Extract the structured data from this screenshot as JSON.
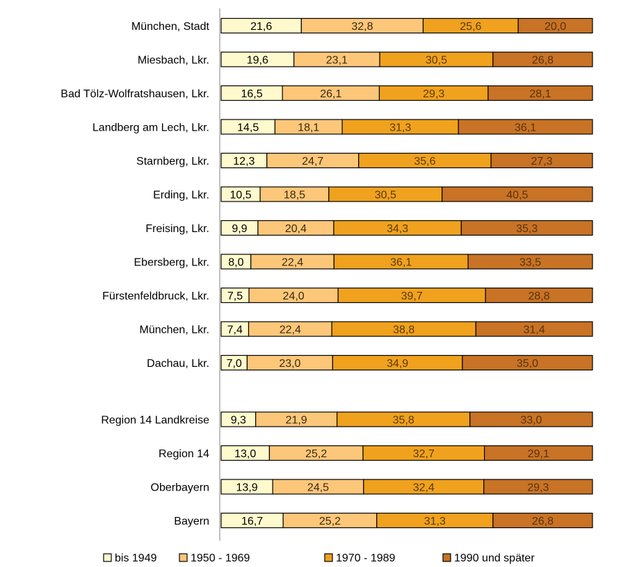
{
  "chart_data": {
    "type": "bar",
    "orientation": "horizontal",
    "stacked": true,
    "percent_stacked": true,
    "categories": [
      "München, Stadt",
      "Miesbach, Lkr.",
      "Bad Tölz-Wolfratshausen, Lkr.",
      "Landberg am Lech, Lkr.",
      "Starnberg, Lkr.",
      "Erding, Lkr.",
      "Freising, Lkr.",
      "Ebersberg, Lkr.",
      "Fürstenfeldbruck, Lkr.",
      "München, Lkr.",
      "Dachau, Lkr.",
      "Region 14 Landkreise",
      "Region 14",
      "Oberbayern",
      "Bayern"
    ],
    "series": [
      {
        "name": "bis 1949",
        "color": "#FFFACD",
        "label_color": "#000000",
        "values": [
          21.6,
          19.6,
          16.5,
          14.5,
          12.3,
          10.5,
          9.9,
          8.0,
          7.5,
          7.4,
          7.0,
          9.3,
          13.0,
          13.9,
          16.7
        ],
        "labels": [
          "21,6",
          "19,6",
          "16,5",
          "14,5",
          "12,3",
          "10,5",
          "9,9",
          "8,0",
          "7,5",
          "7,4",
          "7,0",
          "9,3",
          "13,0",
          "13,9",
          "16,7"
        ]
      },
      {
        "name": "1950 - 1969",
        "color": "#FDC77A",
        "label_color": "#3a2a10",
        "values": [
          32.8,
          23.1,
          26.1,
          18.1,
          24.7,
          18.5,
          20.4,
          22.4,
          24.0,
          22.4,
          23.0,
          21.9,
          25.2,
          24.5,
          25.2
        ],
        "labels": [
          "32,8",
          "23,1",
          "26,1",
          "18,1",
          "24,7",
          "18,5",
          "20,4",
          "22,4",
          "24,0",
          "22,4",
          "23,0",
          "21,9",
          "25,2",
          "24,5",
          "25,2"
        ]
      },
      {
        "name": "1970 - 1989",
        "color": "#F0A21E",
        "label_color": "#5a3a08",
        "values": [
          25.6,
          30.5,
          29.3,
          31.3,
          35.6,
          30.5,
          34.3,
          36.1,
          39.7,
          38.8,
          34.9,
          35.8,
          32.7,
          32.4,
          31.3
        ],
        "labels": [
          "25,6",
          "30,5",
          "29,3",
          "31,3",
          "35,6",
          "30,5",
          "34,3",
          "36,1",
          "39,7",
          "38,8",
          "34,9",
          "35,8",
          "32,7",
          "32,4",
          "31,3"
        ]
      },
      {
        "name": "1990 und später",
        "color": "#C87325",
        "label_color": "#5a3210",
        "values": [
          20.0,
          26.8,
          28.1,
          36.1,
          27.3,
          40.5,
          35.3,
          33.5,
          28.8,
          31.4,
          35.0,
          33.0,
          29.1,
          29.3,
          26.8
        ],
        "labels": [
          "20,0",
          "26,8",
          "28,1",
          "36,1",
          "27,3",
          "40,5",
          "35,3",
          "33,5",
          "28,8",
          "31,4",
          "35,0",
          "33,0",
          "29,1",
          "29,3",
          "26,8"
        ]
      }
    ],
    "gap_after_index": 10,
    "xlim": [
      0,
      100
    ],
    "title": "",
    "xlabel": "",
    "ylabel": "",
    "grid": false,
    "legend_position": "bottom"
  }
}
